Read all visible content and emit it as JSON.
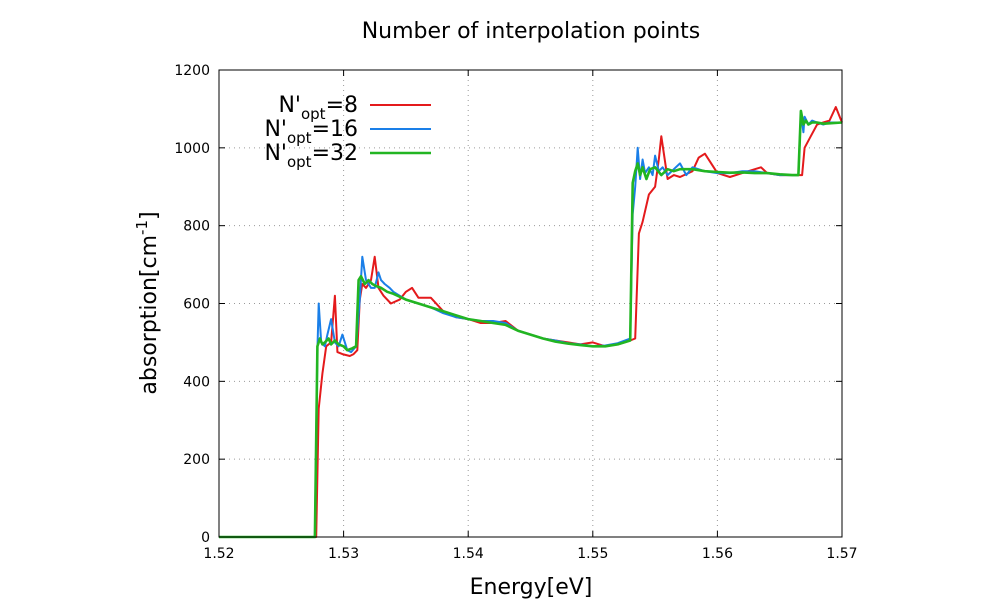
{
  "chart_data": {
    "type": "line",
    "title": "Number of interpolation points",
    "xlabel": "Energy[eV]",
    "ylabel_main": "absorption[cm",
    "ylabel_sup": "-1",
    "ylabel_end": "]",
    "xlim": [
      1.52,
      1.57
    ],
    "ylim": [
      0,
      1200
    ],
    "xticks": [
      "1.52",
      "1.53",
      "1.54",
      "1.55",
      "1.56",
      "1.57"
    ],
    "yticks": [
      "0",
      "200",
      "400",
      "600",
      "800",
      "1000",
      "1200"
    ],
    "grid": true,
    "legend_position": "top-left",
    "series": [
      {
        "legend_base": "N'",
        "legend_sub": "opt",
        "legend_value": "=8",
        "color": "#e41a1c",
        "x": [
          1.52,
          1.5275,
          1.5278,
          1.528,
          1.5283,
          1.5286,
          1.529,
          1.5293,
          1.5295,
          1.5299,
          1.5305,
          1.5308,
          1.5311,
          1.5313,
          1.5315,
          1.5318,
          1.5322,
          1.5325,
          1.5328,
          1.5332,
          1.5338,
          1.5345,
          1.535,
          1.5355,
          1.536,
          1.537,
          1.538,
          1.539,
          1.54,
          1.541,
          1.542,
          1.543,
          1.544,
          1.545,
          1.546,
          1.547,
          1.548,
          1.549,
          1.55,
          1.551,
          1.552,
          1.5525,
          1.553,
          1.5534,
          1.5537,
          1.554,
          1.5545,
          1.555,
          1.5553,
          1.5555,
          1.556,
          1.5565,
          1.557,
          1.558,
          1.5585,
          1.559,
          1.56,
          1.561,
          1.562,
          1.563,
          1.5635,
          1.564,
          1.565,
          1.566,
          1.5665,
          1.5668,
          1.567,
          1.5675,
          1.568,
          1.5685,
          1.569,
          1.5695,
          1.57
        ],
        "y": [
          0,
          0,
          0,
          330,
          420,
          490,
          500,
          620,
          475,
          470,
          465,
          470,
          480,
          610,
          650,
          640,
          660,
          720,
          640,
          620,
          600,
          610,
          630,
          640,
          615,
          615,
          580,
          565,
          560,
          550,
          550,
          555,
          530,
          520,
          510,
          505,
          500,
          495,
          500,
          490,
          495,
          500,
          505,
          510,
          780,
          810,
          880,
          900,
          970,
          1030,
          920,
          930,
          925,
          940,
          975,
          985,
          935,
          925,
          935,
          945,
          950,
          935,
          930,
          930,
          930,
          930,
          1000,
          1030,
          1060,
          1065,
          1070,
          1105,
          1065
        ]
      },
      {
        "legend_base": "N'",
        "legend_sub": "opt",
        "legend_value": "=16",
        "color": "#1a7fe8",
        "x": [
          1.52,
          1.5275,
          1.5277,
          1.5279,
          1.528,
          1.5282,
          1.5285,
          1.5287,
          1.529,
          1.5293,
          1.5296,
          1.5299,
          1.5303,
          1.5306,
          1.531,
          1.5313,
          1.5315,
          1.5318,
          1.5322,
          1.5325,
          1.5328,
          1.533,
          1.5333,
          1.5337,
          1.534,
          1.535,
          1.536,
          1.537,
          1.538,
          1.539,
          1.54,
          1.541,
          1.542,
          1.543,
          1.544,
          1.545,
          1.546,
          1.547,
          1.548,
          1.549,
          1.55,
          1.551,
          1.552,
          1.553,
          1.5532,
          1.5534,
          1.5536,
          1.5538,
          1.554,
          1.5542,
          1.5545,
          1.5548,
          1.555,
          1.5553,
          1.5556,
          1.556,
          1.5565,
          1.557,
          1.5575,
          1.558,
          1.559,
          1.56,
          1.561,
          1.562,
          1.563,
          1.564,
          1.565,
          1.566,
          1.5665,
          1.5667,
          1.5669,
          1.567,
          1.5673,
          1.5676,
          1.568,
          1.5685,
          1.569,
          1.57
        ],
        "y": [
          0,
          0,
          0,
          480,
          600,
          500,
          490,
          520,
          560,
          500,
          490,
          520,
          480,
          475,
          490,
          610,
          720,
          660,
          640,
          640,
          680,
          660,
          650,
          640,
          630,
          610,
          600,
          590,
          575,
          565,
          560,
          555,
          555,
          550,
          530,
          520,
          510,
          505,
          498,
          495,
          490,
          492,
          498,
          510,
          830,
          900,
          1000,
          920,
          970,
          935,
          950,
          930,
          980,
          940,
          950,
          930,
          945,
          960,
          930,
          950,
          940,
          935,
          935,
          940,
          940,
          935,
          930,
          930,
          930,
          1090,
          1040,
          1080,
          1060,
          1070,
          1065,
          1060,
          1065,
          1065
        ]
      },
      {
        "legend_base": "N'",
        "legend_sub": "opt",
        "legend_value": "=32",
        "color": "#22b522",
        "x": [
          1.52,
          1.5275,
          1.5277,
          1.5279,
          1.5281,
          1.5283,
          1.5285,
          1.5288,
          1.529,
          1.5293,
          1.5296,
          1.53,
          1.5303,
          1.5307,
          1.531,
          1.5312,
          1.5314,
          1.5317,
          1.532,
          1.5323,
          1.5326,
          1.533,
          1.5335,
          1.534,
          1.535,
          1.536,
          1.537,
          1.538,
          1.539,
          1.54,
          1.541,
          1.542,
          1.543,
          1.544,
          1.545,
          1.546,
          1.547,
          1.548,
          1.549,
          1.55,
          1.551,
          1.552,
          1.553,
          1.5532,
          1.5534,
          1.5536,
          1.5538,
          1.554,
          1.5543,
          1.5546,
          1.555,
          1.5555,
          1.556,
          1.5565,
          1.557,
          1.558,
          1.559,
          1.56,
          1.561,
          1.562,
          1.563,
          1.564,
          1.565,
          1.566,
          1.5665,
          1.5667,
          1.5669,
          1.5671,
          1.5673,
          1.5676,
          1.568,
          1.5685,
          1.569,
          1.57
        ],
        "y": [
          0,
          0,
          0,
          490,
          510,
          495,
          500,
          510,
          495,
          505,
          495,
          490,
          480,
          485,
          490,
          660,
          670,
          650,
          660,
          650,
          645,
          640,
          630,
          625,
          610,
          600,
          590,
          580,
          570,
          560,
          555,
          550,
          545,
          530,
          520,
          510,
          502,
          497,
          493,
          490,
          490,
          495,
          505,
          910,
          940,
          960,
          930,
          950,
          920,
          945,
          950,
          930,
          945,
          940,
          945,
          945,
          940,
          938,
          936,
          937,
          935,
          935,
          932,
          930,
          930,
          1095,
          1060,
          1070,
          1060,
          1065,
          1065,
          1062,
          1063,
          1065
        ]
      }
    ]
  }
}
